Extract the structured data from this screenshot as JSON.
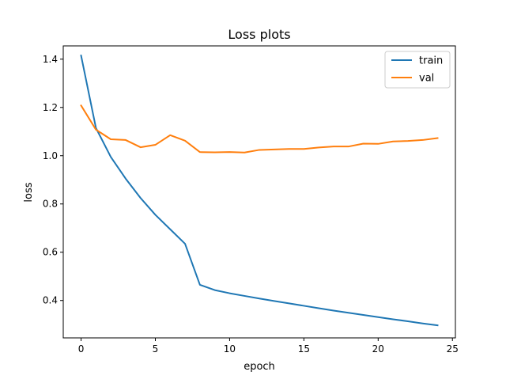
{
  "chart_data": {
    "type": "line",
    "title": "Loss plots",
    "xlabel": "epoch",
    "ylabel": "loss",
    "xlim": [
      -1.2,
      25.2
    ],
    "ylim": [
      0.245,
      1.455
    ],
    "xticks": [
      0,
      5,
      10,
      15,
      20,
      25
    ],
    "yticks": [
      0.4,
      0.6,
      0.8,
      1.0,
      1.2,
      1.4
    ],
    "xtick_labels": [
      "0",
      "5",
      "10",
      "15",
      "20",
      "25"
    ],
    "ytick_labels": [
      "0.4",
      "0.6",
      "0.8",
      "1.0",
      "1.2",
      "1.4"
    ],
    "grid": false,
    "legend_position": "top-right",
    "x": [
      0,
      1,
      2,
      3,
      4,
      5,
      6,
      7,
      8,
      9,
      10,
      11,
      12,
      13,
      14,
      15,
      16,
      17,
      18,
      19,
      20,
      21,
      22,
      23,
      24
    ],
    "series": [
      {
        "name": "train",
        "color": "#1f77b4",
        "values": [
          1.415,
          1.115,
          0.995,
          0.905,
          0.825,
          0.755,
          0.695,
          0.635,
          0.465,
          0.443,
          0.43,
          0.419,
          0.408,
          0.398,
          0.388,
          0.378,
          0.368,
          0.358,
          0.349,
          0.34,
          0.331,
          0.322,
          0.314,
          0.305,
          0.297
        ]
      },
      {
        "name": "val",
        "color": "#ff7f0e",
        "values": [
          1.208,
          1.108,
          1.068,
          1.065,
          1.035,
          1.045,
          1.085,
          1.062,
          1.015,
          1.014,
          1.015,
          1.013,
          1.024,
          1.026,
          1.028,
          1.028,
          1.034,
          1.038,
          1.038,
          1.05,
          1.049,
          1.059,
          1.061,
          1.065,
          1.073
        ]
      }
    ]
  }
}
